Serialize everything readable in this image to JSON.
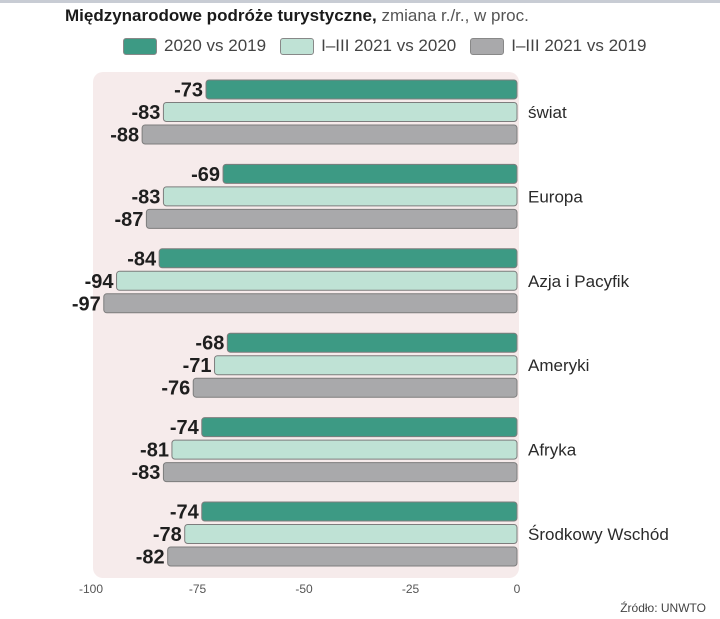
{
  "title": {
    "bold": "Międzynarodowe podróże turystyczne,",
    "light": "zmiana  r./r., w proc."
  },
  "source": "Źródło: UNWTO",
  "colors": {
    "series_0": "#3d9a84",
    "series_1": "#bfe2d5",
    "series_2": "#a9a9ab",
    "panel": "#f6ebeb"
  },
  "chart_data": {
    "type": "bar",
    "orientation": "horizontal",
    "title": "Międzynarodowe podróże turystyczne, zmiana r./r., w proc.",
    "categories": [
      "świat",
      "Europa",
      "Azja i Pacyfik",
      "Ameryki",
      "Afryka",
      "Środkowy Wschód"
    ],
    "series": [
      {
        "name": "2020 vs 2019",
        "values": [
          -73,
          -69,
          -84,
          -68,
          -74,
          -74
        ]
      },
      {
        "name": "I–III 2021 vs 2020",
        "values": [
          -83,
          -83,
          -94,
          -71,
          -81,
          -78
        ]
      },
      {
        "name": "I–III 2021 vs 2019",
        "values": [
          -88,
          -87,
          -97,
          -76,
          -83,
          -82
        ]
      }
    ],
    "xlim": [
      -100,
      0
    ],
    "ticks": [
      -100,
      -75,
      -50,
      -25,
      0
    ],
    "tick_labels": [
      "-100",
      "-75",
      "-50",
      "-25",
      "0"
    ],
    "xlabel": "",
    "ylabel": "",
    "legend_position": "top"
  }
}
